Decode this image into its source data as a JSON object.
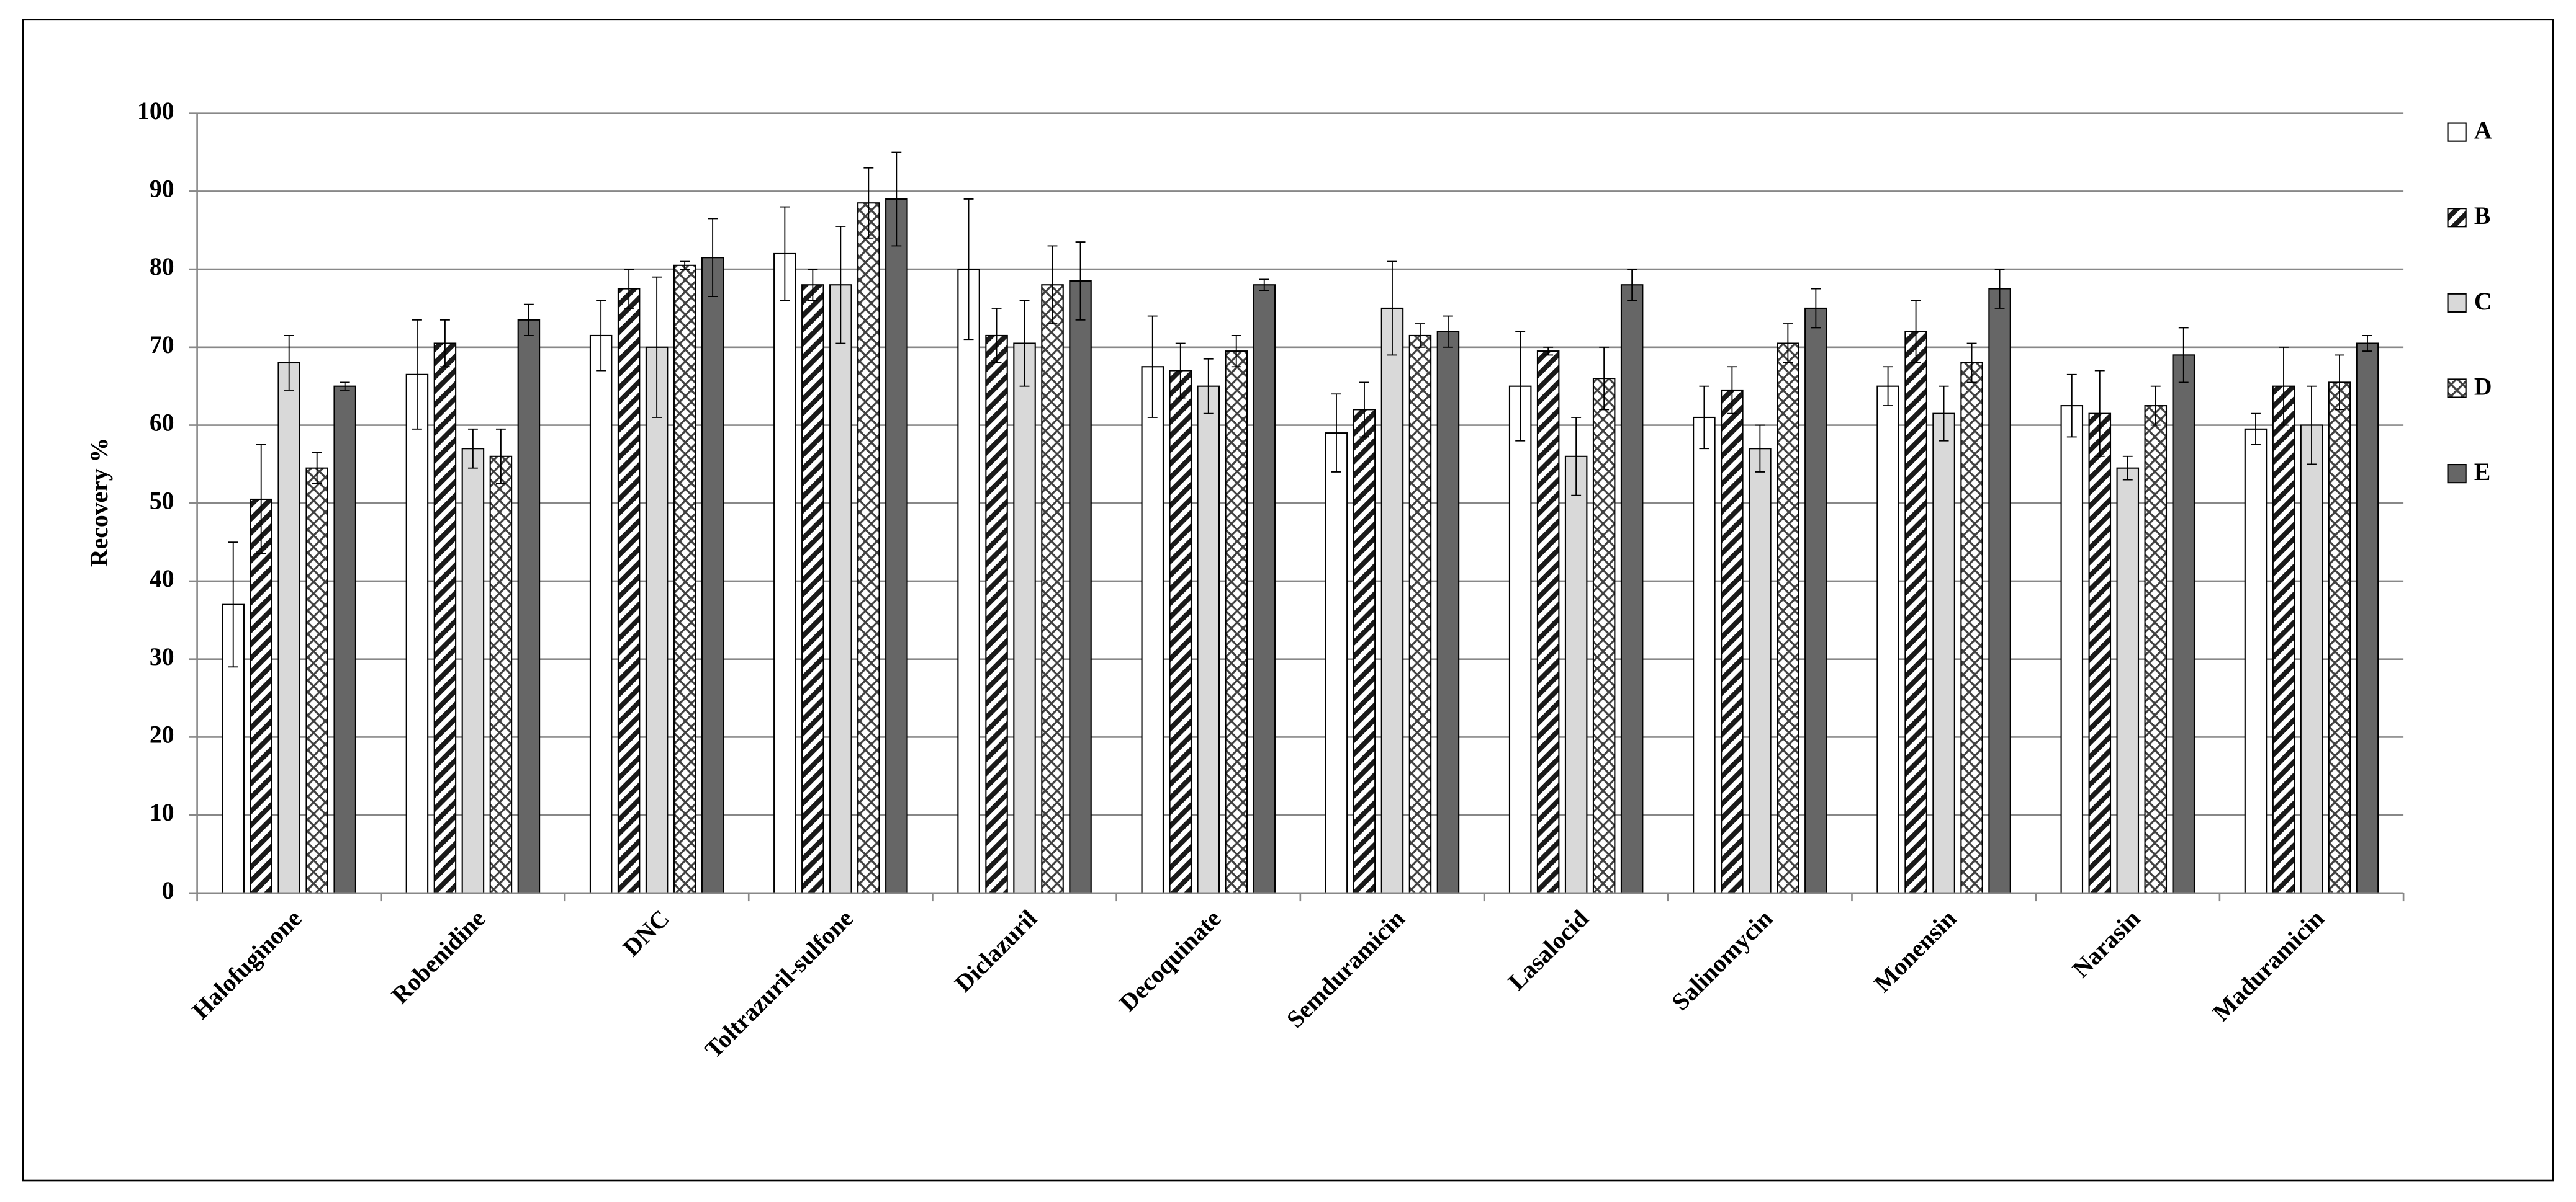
{
  "chart_data": {
    "type": "bar",
    "ylabel": "Recovery %",
    "categories": [
      "Halofuginone",
      "Robenidine",
      "DNC",
      "Toltrazuril-sulfone",
      "Diclazuril",
      "Decoquinate",
      "Semduramicin",
      "Lasalocid",
      "Salinomycin",
      "Monensin",
      "Narasin",
      "Maduramicin"
    ],
    "series": [
      {
        "name": "A",
        "color": "#ffffff",
        "hatch": "none",
        "values": [
          37,
          66.5,
          71.5,
          82,
          80,
          67.5,
          59,
          65,
          61,
          65,
          62.5,
          59.5
        ],
        "errors": [
          8,
          7,
          4.5,
          6,
          9,
          6.5,
          5,
          7,
          4,
          2.5,
          4,
          2
        ]
      },
      {
        "name": "B",
        "color": "#1a1a1a",
        "hatch": "diagonal",
        "values": [
          50.5,
          70.5,
          77.5,
          78,
          71.5,
          67,
          62,
          69.5,
          64.5,
          72,
          61.5,
          65
        ],
        "errors": [
          7,
          3,
          2.5,
          2,
          3.5,
          3.5,
          3.5,
          0.5,
          3,
          4,
          5.5,
          5
        ]
      },
      {
        "name": "C",
        "color": "#d9d9d9",
        "hatch": "none",
        "values": [
          68,
          57,
          70,
          78,
          70.5,
          65,
          75,
          56,
          57,
          61.5,
          54.5,
          60
        ],
        "errors": [
          3.5,
          2.5,
          9,
          7.5,
          5.5,
          3.5,
          6,
          5,
          3,
          3.5,
          1.5,
          5
        ]
      },
      {
        "name": "D",
        "color": "#404040",
        "hatch": "cross",
        "values": [
          54.5,
          56,
          80.5,
          88.5,
          78,
          69.5,
          71.5,
          66,
          70.5,
          68,
          62.5,
          65.5
        ],
        "errors": [
          2,
          3.5,
          0.5,
          4.5,
          5,
          2,
          1.5,
          4,
          2.5,
          2.5,
          2.5,
          3.5
        ]
      },
      {
        "name": "E",
        "color": "#666666",
        "hatch": "none",
        "values": [
          65,
          73.5,
          81.5,
          89,
          78.5,
          78,
          72,
          78,
          75,
          77.5,
          69,
          70.5
        ],
        "errors": [
          0.5,
          2,
          5,
          6,
          5,
          0.7,
          2,
          2,
          2.5,
          2.5,
          3.5,
          1
        ]
      }
    ],
    "ylim": [
      0,
      100
    ],
    "yticks": [
      0,
      10,
      20,
      30,
      40,
      50,
      60,
      70,
      80,
      90,
      100
    ],
    "grid": true,
    "legend": "right"
  }
}
